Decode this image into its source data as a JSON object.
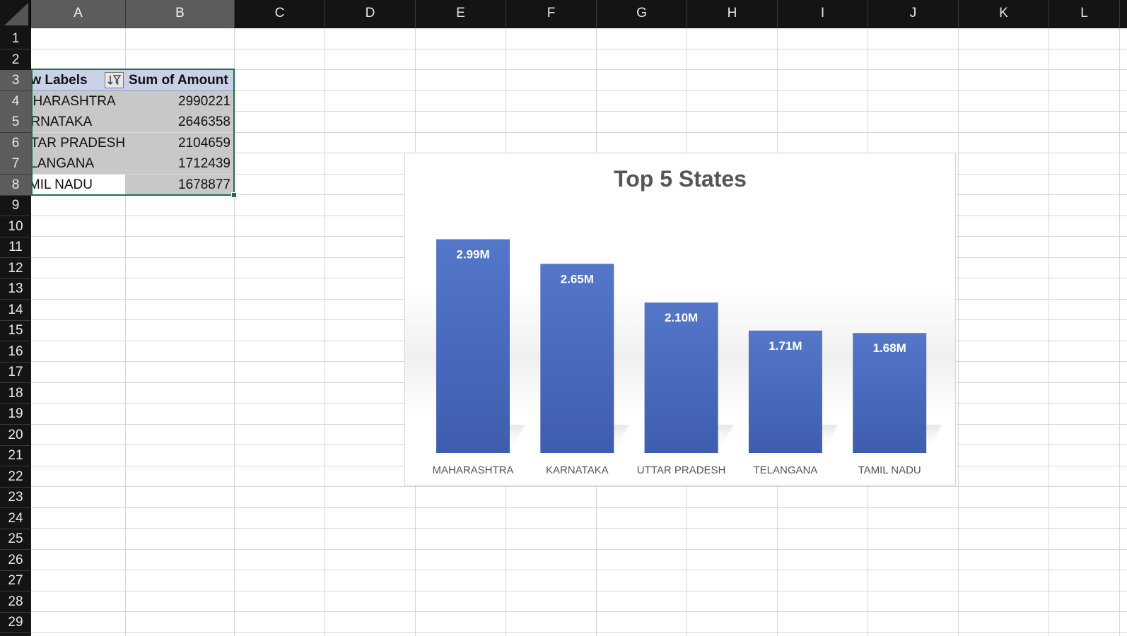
{
  "sheet": {
    "columns": [
      "A",
      "B",
      "C",
      "D",
      "E",
      "F",
      "G",
      "H",
      "I",
      "J",
      "K",
      "L"
    ],
    "rows": [
      "1",
      "2",
      "3",
      "4",
      "5",
      "6",
      "7",
      "8",
      "9",
      "10",
      "11",
      "12",
      "13",
      "14",
      "15",
      "16",
      "17",
      "18",
      "19",
      "20",
      "21",
      "22",
      "23",
      "24",
      "25",
      "26",
      "27",
      "28",
      "29"
    ]
  },
  "pivot": {
    "header": {
      "row_labels": "Row Labels",
      "sum_label": "Sum of Amount"
    },
    "rows": [
      {
        "label": "MAHARASHTRA",
        "value": "2990221"
      },
      {
        "label": "KARNATAKA",
        "value": "2646358"
      },
      {
        "label": "UTTAR PRADESH",
        "value": "2104659"
      },
      {
        "label": "TELANGANA",
        "value": "1712439"
      },
      {
        "label": "TAMIL NADU",
        "value": "1678877"
      }
    ],
    "filter_icon": "sort-filter-icon"
  },
  "chart_data": {
    "type": "bar",
    "title": "Top 5 States",
    "categories": [
      "MAHARASHTRA",
      "KARNATAKA",
      "UTTAR PRADESH",
      "TELANGANA",
      "TAMIL NADU"
    ],
    "values": [
      2990221,
      2646358,
      2104659,
      1712439,
      1678877
    ],
    "data_labels": [
      "2.99M",
      "2.65M",
      "2.10M",
      "1.71M",
      "1.68M"
    ],
    "bar_color": "#4a6cc0",
    "label_color": "#ffffff",
    "grid": false,
    "legend": "none",
    "ylim": [
      0,
      3500000
    ]
  }
}
